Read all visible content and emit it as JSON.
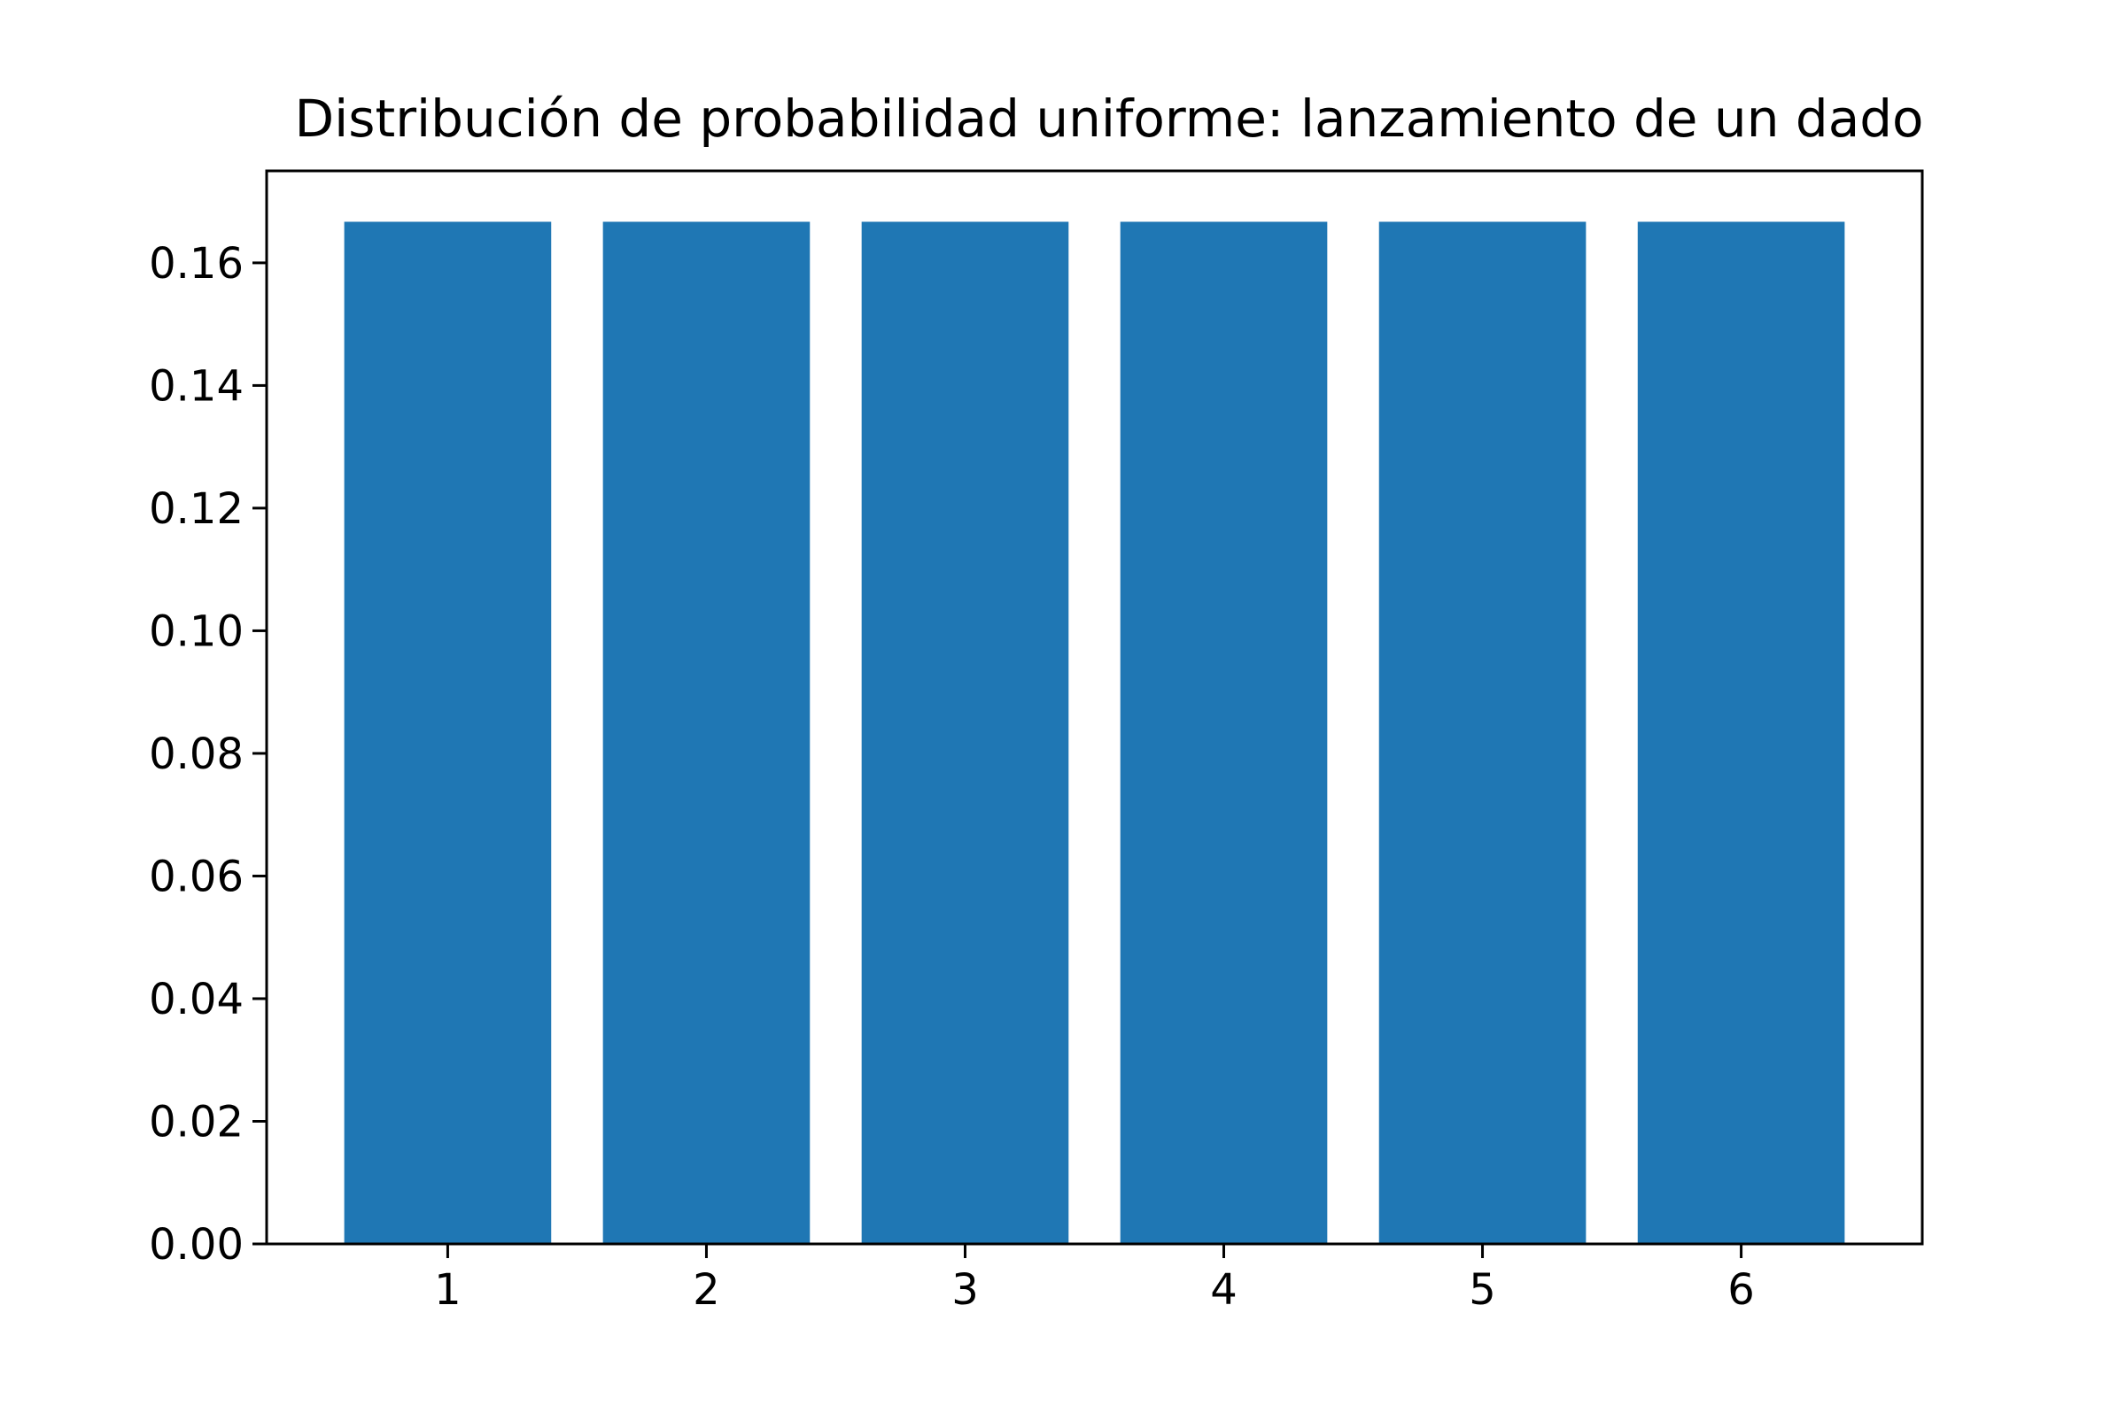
{
  "chart_data": {
    "type": "bar",
    "title": "Distribución de probabilidad uniforme: lanzamiento de un dado",
    "xlabel": "",
    "ylabel": "",
    "categories": [
      "1",
      "2",
      "3",
      "4",
      "5",
      "6"
    ],
    "values": [
      0.1667,
      0.1667,
      0.1667,
      0.1667,
      0.1667,
      0.1667
    ],
    "ylim": [
      0,
      0.175
    ],
    "yticks": [
      0.0,
      0.02,
      0.04,
      0.06,
      0.08,
      0.1,
      0.12,
      0.14,
      0.16
    ],
    "ytick_labels": [
      "0.00",
      "0.02",
      "0.04",
      "0.06",
      "0.08",
      "0.10",
      "0.12",
      "0.14",
      "0.16"
    ],
    "xlim": [
      0.3,
      6.7
    ],
    "bar_color": "#1f77b4",
    "grid": false,
    "legend": "none"
  }
}
